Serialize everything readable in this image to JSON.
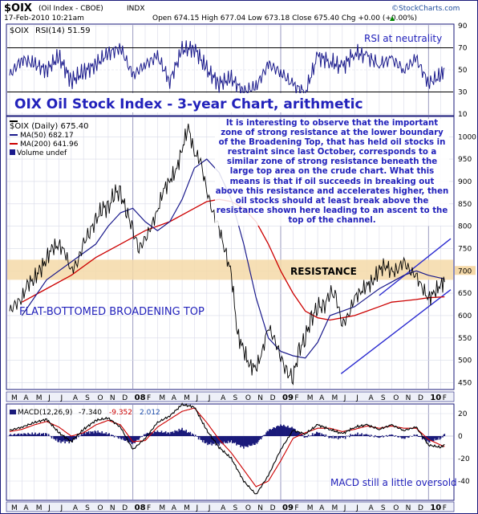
{
  "header": {
    "symbol": "$OIX",
    "name": "(Oil Index - CBOE)",
    "exchange": "INDX",
    "date_line": "17-Feb-2010 10:21am",
    "ohlc": "Open 674.15  High 677.04  Low 673.18  Close 675.40  Chg +0.00 (+0.00%)",
    "ohlc_change_arrow": "▲",
    "logo": "©StockCharts.com"
  },
  "colors": {
    "background": "#ffffff",
    "panel_bg": "#ffffff",
    "border": "#1a1a7a",
    "annotation_blue": "#2222bb",
    "price": "#000000",
    "ma50": "#1a1a8c",
    "ma200": "#cc0000",
    "resistance_band": "#f5d9a8",
    "channel": "#2a2ad0",
    "rsi_line": "#1a1a8c",
    "macd_line": "#000000",
    "signal_line": "#cc0000",
    "histogram": "#1a1a7a",
    "axis_label": "#000000",
    "month_bar": "#eef0f8"
  },
  "x_axis": {
    "labels": [
      "M",
      "A",
      "M",
      "J",
      "J",
      "A",
      "S",
      "O",
      "N",
      "D",
      "08",
      "F",
      "M",
      "A",
      "M",
      "J",
      "J",
      "A",
      "S",
      "O",
      "N",
      "D",
      "09",
      "F",
      "M",
      "A",
      "M",
      "J",
      "J",
      "A",
      "S",
      "O",
      "N",
      "D",
      "10",
      "F"
    ],
    "bold_labels": [
      "08",
      "09",
      "10"
    ]
  },
  "rsi_panel": {
    "legend_symbol": "$OIX",
    "legend": "RSI(14) 51.59",
    "annotation": "RSI at neutrality",
    "y_ticks": [
      "90",
      "70",
      "50",
      "30",
      "10"
    ],
    "overbought": 70,
    "oversold": 30
  },
  "price_panel": {
    "title": "OIX Oil Stock Index - 3-year Chart, arithmetic",
    "legend": [
      {
        "label": "$OIX (Daily) 675.40",
        "color": "#000000"
      },
      {
        "label": "MA(50) 682.17",
        "color": "#1a1a8c"
      },
      {
        "label": "MA(200) 641.96",
        "color": "#cc0000"
      },
      {
        "label": "Volume undef",
        "color": "#1a1a8c"
      }
    ],
    "commentary": "It is interesting to observe that the important zone of strong resistance at the lower boundary of the Broadening Top, that has held oil stocks in restraint since last October, corresponds to a similar zone of strong resistance beneath the large top area on the crude chart. What this means is that if oil succeeds in breaking out above this resistance and accelerates higher, then oil stocks should at least break above the resistance shown here leading to an ascent to the top of the channel.",
    "resistance_label": "RESISTANCE",
    "pattern_label": "FLAT-BOTTOMED BROADENING TOP",
    "y_ticks": [
      "1000",
      "950",
      "900",
      "850",
      "800",
      "750",
      "700",
      "650",
      "600",
      "550",
      "500",
      "450"
    ],
    "highlight_tick": "700"
  },
  "macd_panel": {
    "legend_name": "MACD(12,26,9)",
    "legend_macd": "-7.340",
    "legend_signal": "-9.352",
    "legend_hist": "2.012",
    "annotation": "MACD still a little oversold",
    "y_ticks": [
      "20",
      "0",
      "-20",
      "-40"
    ]
  },
  "chart_data": {
    "type": "line",
    "title": "OIX Oil Stock Index - 3-year Chart, arithmetic",
    "x_unit": "months since Mar 2007",
    "price_series": {
      "name": "$OIX (Daily)",
      "x": [
        0,
        0.5,
        1,
        1.5,
        2,
        2.5,
        3,
        3.5,
        4,
        4.5,
        5,
        5.5,
        6,
        6.5,
        7,
        7.5,
        8,
        8.5,
        9,
        9.5,
        10,
        10.5,
        11,
        11.5,
        12,
        12.5,
        13,
        13.5,
        14,
        14.5,
        15,
        15.5,
        16,
        16.5,
        17,
        17.5,
        18,
        18.5,
        19,
        19.5,
        20,
        20.5,
        21,
        21.5,
        22,
        22.5,
        23,
        23.5,
        24,
        24.5,
        25,
        25.5,
        26,
        26.5,
        27,
        27.5,
        28,
        28.5,
        29,
        29.5,
        30,
        30.5,
        31,
        31.5,
        32,
        32.5,
        33,
        33.5,
        34,
        34.5,
        35,
        35.3
      ],
      "values": [
        610,
        625,
        640,
        670,
        685,
        700,
        730,
        750,
        760,
        740,
        700,
        720,
        760,
        790,
        810,
        845,
        835,
        880,
        870,
        835,
        790,
        750,
        770,
        800,
        835,
        880,
        905,
        920,
        975,
        1020,
        965,
        945,
        880,
        830,
        795,
        745,
        690,
        560,
        520,
        490,
        480,
        520,
        575,
        545,
        510,
        470,
        465,
        520,
        555,
        590,
        625,
        615,
        655,
        640,
        580,
        600,
        640,
        655,
        665,
        680,
        700,
        715,
        695,
        705,
        720,
        700,
        690,
        660,
        640,
        650,
        672,
        675
      ]
    },
    "ma50": {
      "name": "MA(50)",
      "x": [
        1,
        3,
        5,
        7,
        8,
        9,
        10,
        11,
        12,
        13,
        14,
        15,
        16,
        17,
        18,
        19,
        20,
        21,
        22,
        23,
        24,
        25,
        26,
        27,
        28,
        29,
        30,
        31,
        32,
        33,
        34,
        35.3
      ],
      "values": [
        600,
        680,
        720,
        760,
        800,
        830,
        840,
        810,
        790,
        810,
        860,
        930,
        950,
        920,
        860,
        760,
        640,
        550,
        520,
        510,
        505,
        540,
        600,
        610,
        620,
        640,
        660,
        675,
        690,
        700,
        690,
        682
      ]
    },
    "ma200": {
      "name": "MA(200)",
      "x": [
        1,
        3,
        5,
        7,
        9,
        11,
        13,
        15,
        16,
        17,
        18,
        19,
        20,
        21,
        22,
        23,
        24,
        25,
        26,
        27,
        28,
        29,
        30,
        31,
        32,
        33,
        34,
        35.3
      ],
      "values": [
        630,
        660,
        690,
        730,
        760,
        790,
        810,
        840,
        855,
        860,
        855,
        840,
        810,
        760,
        700,
        650,
        610,
        595,
        590,
        595,
        600,
        610,
        620,
        630,
        633,
        636,
        640,
        642
      ]
    },
    "resistance_zone": [
      680,
      725
    ],
    "rsi": {
      "name": "RSI(14)",
      "x": [
        0,
        1,
        2,
        3,
        4,
        5,
        6,
        7,
        8,
        9,
        10,
        11,
        12,
        13,
        14,
        15,
        16,
        17,
        18,
        19,
        20,
        21,
        22,
        23,
        24,
        25,
        26,
        27,
        28,
        29,
        30,
        31,
        32,
        33,
        34,
        35,
        35.3
      ],
      "values": [
        45,
        60,
        55,
        50,
        62,
        40,
        48,
        55,
        65,
        70,
        45,
        55,
        62,
        40,
        68,
        70,
        50,
        38,
        42,
        30,
        35,
        55,
        48,
        36,
        30,
        62,
        58,
        52,
        66,
        62,
        55,
        60,
        50,
        60,
        38,
        45,
        51.59
      ],
      "ylim": [
        10,
        90
      ]
    },
    "macd": {
      "x": [
        0,
        1,
        2,
        3,
        4,
        5,
        6,
        7,
        8,
        9,
        10,
        11,
        12,
        13,
        14,
        15,
        16,
        17,
        18,
        19,
        20,
        21,
        22,
        23,
        24,
        25,
        26,
        27,
        28,
        29,
        30,
        31,
        32,
        33,
        34,
        35,
        35.3
      ],
      "macd": [
        5,
        8,
        12,
        15,
        3,
        -5,
        6,
        14,
        16,
        8,
        -12,
        -2,
        12,
        18,
        28,
        26,
        5,
        -10,
        -20,
        -40,
        -52,
        -35,
        -12,
        5,
        2,
        10,
        6,
        2,
        8,
        10,
        6,
        10,
        5,
        8,
        -8,
        -10,
        -7.34
      ],
      "signal": [
        4,
        6,
        10,
        13,
        8,
        0,
        3,
        10,
        14,
        10,
        -5,
        -4,
        8,
        15,
        22,
        25,
        12,
        -3,
        -15,
        -30,
        -45,
        -40,
        -22,
        -2,
        3,
        7,
        7,
        4,
        6,
        9,
        7,
        9,
        7,
        7,
        -3,
        -8,
        -9.352
      ],
      "histogram": [
        1,
        2,
        2,
        2,
        -5,
        -5,
        3,
        4,
        2,
        -2,
        -7,
        2,
        4,
        3,
        6,
        1,
        -7,
        -7,
        -5,
        -10,
        -7,
        5,
        10,
        7,
        -1,
        3,
        -1,
        -2,
        2,
        1,
        -1,
        1,
        -2,
        1,
        -5,
        -2,
        2.012
      ],
      "ylim": [
        -50,
        25
      ]
    }
  }
}
